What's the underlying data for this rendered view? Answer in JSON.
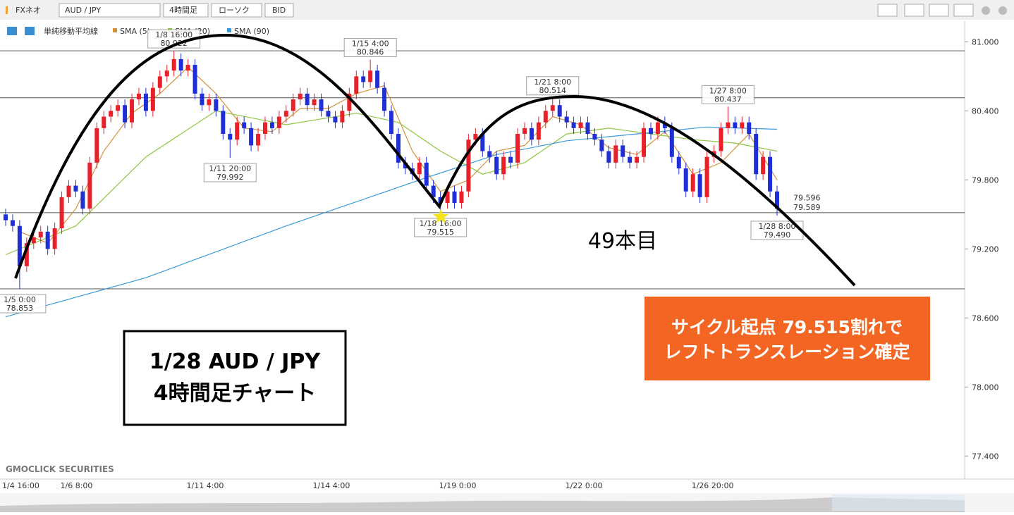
{
  "toolbar": {
    "app": "FXネオ",
    "symbol": "AUD / JPY",
    "timeframe": "4時間足",
    "chart_type": "ローソク",
    "price": "BID"
  },
  "chart_data": {
    "type": "candlestick",
    "legend_title": "単純移動平均線",
    "up_color": "#e8202a",
    "down_color": "#1f2fd6",
    "categories": [
      "1/4 16:00",
      null,
      null,
      null,
      null,
      null,
      null,
      null,
      null,
      "1/6 8:00",
      null,
      null,
      null,
      null,
      null,
      null,
      null,
      null,
      null,
      null,
      null,
      null,
      null,
      null,
      null,
      null,
      null,
      "1/11 4:00",
      null,
      null,
      null,
      null,
      null,
      null,
      null,
      null,
      null,
      null,
      null,
      null,
      null,
      null,
      null,
      null,
      null,
      "1/14 4:00",
      null,
      null,
      null,
      null,
      null,
      null,
      null,
      null,
      null,
      null,
      null,
      null,
      null,
      null,
      null,
      null,
      null,
      "1/19 0:00",
      null,
      null,
      null,
      null,
      null,
      null,
      null,
      null,
      null,
      null,
      null,
      null,
      null,
      null,
      null,
      null,
      null,
      "1/22 0:00",
      null,
      null,
      null,
      null,
      null,
      null,
      null,
      null,
      null,
      null,
      null,
      null,
      null,
      null,
      null,
      null,
      null,
      "1/26 20:00",
      null,
      null,
      null,
      null,
      null,
      null,
      null,
      null,
      null,
      null,
      null
    ],
    "open": [
      79.5,
      79.45,
      79.4,
      79.05,
      79.25,
      79.3,
      79.35,
      79.2,
      79.38,
      79.65,
      79.75,
      79.7,
      79.55,
      79.95,
      80.25,
      80.35,
      80.4,
      80.45,
      80.3,
      80.5,
      80.55,
      80.4,
      80.6,
      80.7,
      80.75,
      80.85,
      80.75,
      80.8,
      80.55,
      80.45,
      80.5,
      80.4,
      80.2,
      80.15,
      80.3,
      80.25,
      80.1,
      80.2,
      80.3,
      80.25,
      80.35,
      80.4,
      80.5,
      80.55,
      80.45,
      80.5,
      80.4,
      80.35,
      80.3,
      80.4,
      80.55,
      80.7,
      80.65,
      80.75,
      80.6,
      80.4,
      80.2,
      79.95,
      79.9,
      79.85,
      79.95,
      79.75,
      79.65,
      79.6,
      79.7,
      79.6,
      79.7,
      80.15,
      80.2,
      80.05,
      80.0,
      79.85,
      80.0,
      79.95,
      80.2,
      80.25,
      80.15,
      80.3,
      80.4,
      80.45,
      80.35,
      80.3,
      80.25,
      80.3,
      80.2,
      80.15,
      80.05,
      79.95,
      80.1,
      80.0,
      79.95,
      80.0,
      80.25,
      80.2,
      80.3,
      80.25,
      80.0,
      79.9,
      79.7,
      79.85,
      79.65,
      80.0,
      80.05,
      80.25,
      80.3,
      80.25,
      80.3,
      80.2,
      79.85,
      80.0,
      79.7
    ],
    "high": [
      79.55,
      79.5,
      79.45,
      79.3,
      79.35,
      79.4,
      79.4,
      79.43,
      79.7,
      79.8,
      79.8,
      79.75,
      80.0,
      80.3,
      80.4,
      80.45,
      80.5,
      80.5,
      80.55,
      80.6,
      80.6,
      80.65,
      80.75,
      80.8,
      80.922,
      80.9,
      80.85,
      80.85,
      80.6,
      80.55,
      80.55,
      80.45,
      80.25,
      80.35,
      80.35,
      80.3,
      80.25,
      80.35,
      80.35,
      80.4,
      80.45,
      80.55,
      80.6,
      80.6,
      80.55,
      80.55,
      80.45,
      80.4,
      80.45,
      80.6,
      80.75,
      80.75,
      80.846,
      80.8,
      80.65,
      80.45,
      80.25,
      80.0,
      79.95,
      80.0,
      80.0,
      79.8,
      79.7,
      79.75,
      79.75,
      79.75,
      80.2,
      80.25,
      80.25,
      80.1,
      80.05,
      80.05,
      80.05,
      80.25,
      80.3,
      80.3,
      80.35,
      80.45,
      80.514,
      80.5,
      80.4,
      80.35,
      80.35,
      80.35,
      80.25,
      80.2,
      80.1,
      80.15,
      80.15,
      80.05,
      80.05,
      80.3,
      80.3,
      80.35,
      80.35,
      80.3,
      80.05,
      79.95,
      79.9,
      79.9,
      80.05,
      80.1,
      80.3,
      80.437,
      80.35,
      80.35,
      80.35,
      80.25,
      80.05,
      80.05,
      79.75
    ],
    "low": [
      79.4,
      79.35,
      78.853,
      79.0,
      79.2,
      79.25,
      79.15,
      79.15,
      79.33,
      79.6,
      79.65,
      79.5,
      79.5,
      79.9,
      80.2,
      80.3,
      80.35,
      80.25,
      80.25,
      80.45,
      80.35,
      80.35,
      80.55,
      80.65,
      80.7,
      80.7,
      80.7,
      80.5,
      80.4,
      80.4,
      80.35,
      80.15,
      79.992,
      80.1,
      80.2,
      80.05,
      80.05,
      80.15,
      80.2,
      80.2,
      80.3,
      80.35,
      80.45,
      80.4,
      80.4,
      80.35,
      80.3,
      80.25,
      80.25,
      80.35,
      80.5,
      80.6,
      80.6,
      80.55,
      80.35,
      80.15,
      79.9,
      79.85,
      79.8,
      79.8,
      79.7,
      79.6,
      79.515,
      79.55,
      79.55,
      79.55,
      79.65,
      80.1,
      80.0,
      79.95,
      79.8,
      79.8,
      79.9,
      79.9,
      80.15,
      80.1,
      80.1,
      80.25,
      80.35,
      80.3,
      80.25,
      80.2,
      80.2,
      80.15,
      80.1,
      80.0,
      79.9,
      79.9,
      79.95,
      79.9,
      79.9,
      79.95,
      80.15,
      80.15,
      80.2,
      79.95,
      79.85,
      79.65,
      79.65,
      79.6,
      79.6,
      79.95,
      80.0,
      80.2,
      80.2,
      80.2,
      80.15,
      79.8,
      79.8,
      79.65,
      79.49
    ],
    "close": [
      79.45,
      79.4,
      79.05,
      79.25,
      79.3,
      79.35,
      79.2,
      79.38,
      79.65,
      79.75,
      79.7,
      79.55,
      79.95,
      80.25,
      80.35,
      80.4,
      80.45,
      80.3,
      80.5,
      80.55,
      80.4,
      80.6,
      80.7,
      80.75,
      80.85,
      80.75,
      80.8,
      80.55,
      80.45,
      80.5,
      80.4,
      80.2,
      80.15,
      80.3,
      80.25,
      80.1,
      80.2,
      80.3,
      80.25,
      80.35,
      80.4,
      80.5,
      80.55,
      80.45,
      80.5,
      80.4,
      80.35,
      80.3,
      80.4,
      80.55,
      80.7,
      80.65,
      80.75,
      80.6,
      80.4,
      80.2,
      79.95,
      79.9,
      79.85,
      79.95,
      79.75,
      79.65,
      79.6,
      79.7,
      79.6,
      79.7,
      80.15,
      80.2,
      80.05,
      80.0,
      79.85,
      80.0,
      79.95,
      80.2,
      80.25,
      80.15,
      80.3,
      80.4,
      80.45,
      80.35,
      80.3,
      80.25,
      80.3,
      80.2,
      80.15,
      80.05,
      79.95,
      80.1,
      80.0,
      79.95,
      80.0,
      80.25,
      80.2,
      80.3,
      80.25,
      80.0,
      79.9,
      79.7,
      79.85,
      79.65,
      80.0,
      80.05,
      80.25,
      80.3,
      80.25,
      80.3,
      80.2,
      79.85,
      80.0,
      79.7,
      79.55
    ],
    "series": [
      {
        "name": "SMA (5)",
        "color": "#d4913b",
        "x": [
          2,
          6,
          10,
          14,
          18,
          22,
          26,
          30,
          34,
          38,
          42,
          46,
          50,
          54,
          58,
          62,
          66,
          70,
          74,
          78,
          82,
          86,
          90,
          94,
          98,
          102,
          106,
          110
        ],
        "values": [
          79.35,
          79.25,
          79.55,
          80.05,
          80.38,
          80.55,
          80.78,
          80.55,
          80.25,
          80.22,
          80.42,
          80.42,
          80.55,
          80.62,
          80.05,
          79.7,
          79.8,
          80.05,
          80.1,
          80.35,
          80.28,
          80.08,
          80.02,
          80.22,
          79.85,
          79.95,
          80.2,
          79.8
        ]
      },
      {
        "name": "SMA (20)",
        "color": "#8fc641",
        "x": [
          0,
          10,
          20,
          30,
          40,
          50,
          56,
          62,
          68,
          74,
          80,
          86,
          92,
          98,
          104,
          110
        ],
        "values": [
          79.15,
          79.4,
          80.0,
          80.4,
          80.28,
          80.38,
          80.3,
          80.05,
          79.85,
          79.95,
          80.2,
          80.25,
          80.2,
          80.15,
          80.12,
          80.05
        ]
      },
      {
        "name": "SMA (90)",
        "color": "#3a9ad9",
        "x": [
          0,
          20,
          40,
          60,
          70,
          80,
          90,
          100,
          110
        ],
        "values": [
          78.61,
          78.95,
          79.4,
          79.82,
          80.02,
          80.14,
          80.2,
          80.26,
          80.24
        ]
      }
    ],
    "ylim": [
      77.2,
      81.18
    ],
    "yticks": [
      {
        "value": 81,
        "label": "81.000"
      },
      {
        "value": 80.4,
        "label": "80.400"
      },
      {
        "value": 79.8,
        "label": "79.800"
      },
      {
        "value": 79.2,
        "label": "79.200"
      },
      {
        "value": 78.6,
        "label": "78.600"
      },
      {
        "value": 78,
        "label": "78.000"
      },
      {
        "value": 77.4,
        "label": "77.400"
      }
    ],
    "hlines": [
      80.922,
      80.514,
      79.515,
      78.853
    ],
    "annotations": [
      {
        "date": "1/5 0:00",
        "value": 78.853
      },
      {
        "date": "1/8 16:00",
        "value": 80.922
      },
      {
        "date": "1/11 20:00",
        "value": 79.992
      },
      {
        "date": "1/15 4:00",
        "value": 80.846
      },
      {
        "date": "1/18 16:00",
        "value": 79.515
      },
      {
        "date": "1/21 8:00",
        "value": 80.514
      },
      {
        "date": "1/27 8:00",
        "value": 80.437
      },
      {
        "date": "1/28 8:00",
        "value": {
          "value": 79.49,
          "label": "79.490"
        }
      }
    ],
    "price_labels": [
      {
        "value": 79.596,
        "color": "#e8202a"
      },
      {
        "value": 79.589,
        "color": "#3a9ad9"
      }
    ]
  },
  "overlays": {
    "title_lines": [
      "1/28  AUD / JPY",
      "4時間足チャート"
    ],
    "count_note": "49本目",
    "callout_lines": [
      "サイクル起点 79.515割れで",
      "レフトトランスレーション確定"
    ]
  },
  "watermark": "GMOCLICK SECURITIES"
}
